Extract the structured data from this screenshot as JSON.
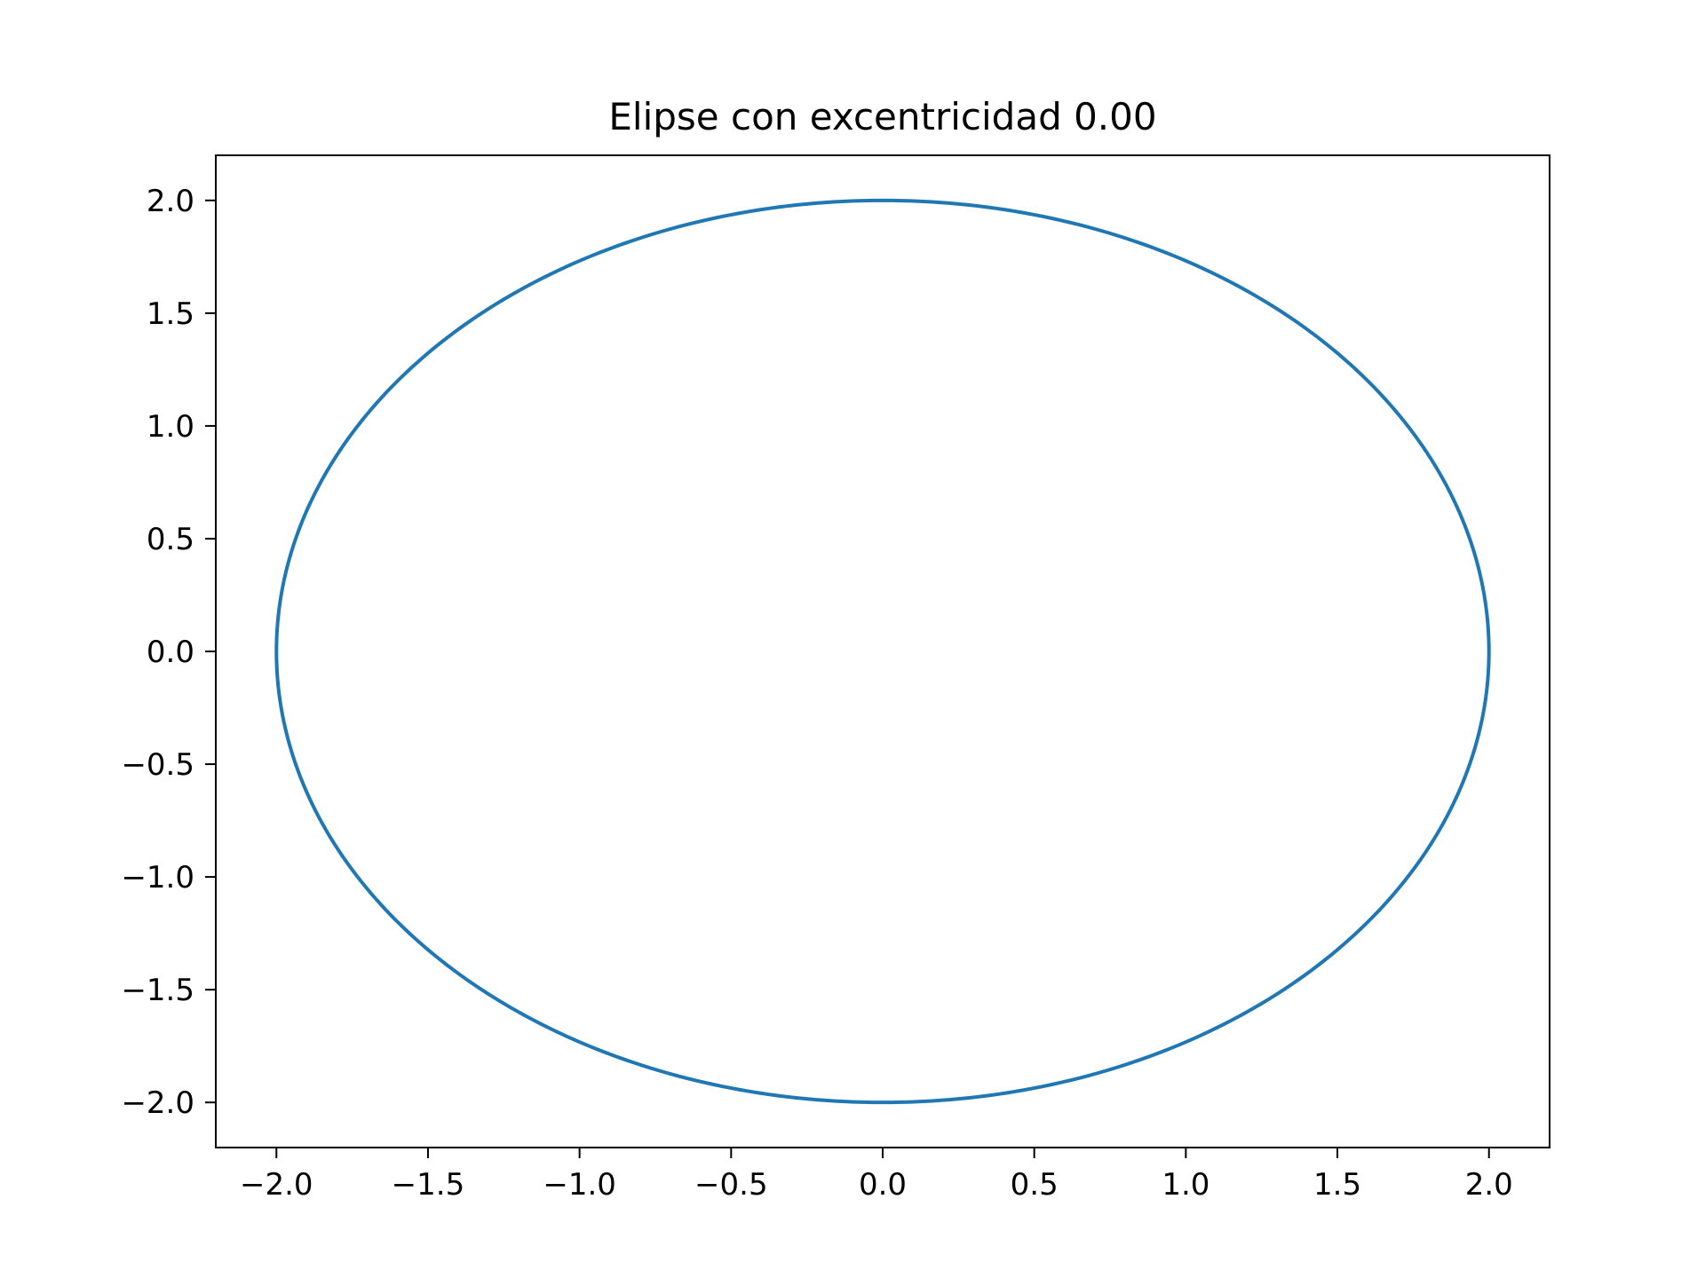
{
  "chart_data": {
    "type": "line",
    "title": "Elipse con excentricidad 0.00",
    "xlabel": "",
    "ylabel": "",
    "xlim": [
      -2.2,
      2.2
    ],
    "ylim": [
      -2.2,
      2.2
    ],
    "xticks": [
      -2.0,
      -1.5,
      -1.0,
      -0.5,
      0.0,
      0.5,
      1.0,
      1.5,
      2.0
    ],
    "xtick_labels": [
      "−2.0",
      "−1.5",
      "−1.0",
      "−0.5",
      "0.0",
      "0.5",
      "1.0",
      "1.5",
      "2.0"
    ],
    "yticks": [
      -2.0,
      -1.5,
      -1.0,
      -0.5,
      0.0,
      0.5,
      1.0,
      1.5,
      2.0
    ],
    "ytick_labels": [
      "−2.0",
      "−1.5",
      "−1.0",
      "−0.5",
      "0.0",
      "0.5",
      "1.0",
      "1.5",
      "2.0"
    ],
    "grid": false,
    "legend": "none",
    "series": [
      {
        "color": "#1f77b4",
        "curve": "ellipse",
        "center": [
          0,
          0
        ],
        "semi_major": 2.0,
        "semi_minor": 2.0,
        "eccentricity": 0.0
      }
    ]
  }
}
